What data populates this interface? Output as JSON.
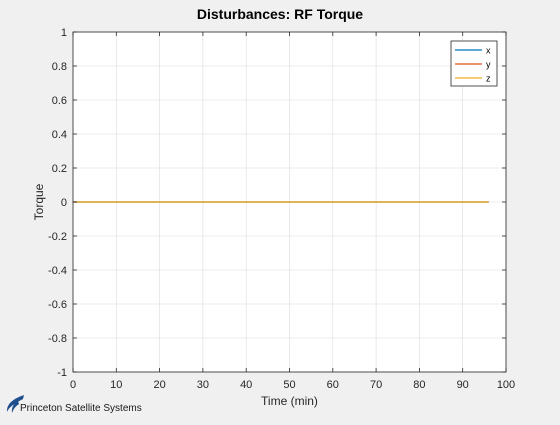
{
  "chart_data": {
    "type": "line",
    "title": "Disturbances: RF Torque",
    "xlabel": "Time (min)",
    "ylabel": "Torque",
    "xlim": [
      0,
      100
    ],
    "ylim": [
      -1,
      1
    ],
    "xticks": [
      0,
      10,
      20,
      30,
      40,
      50,
      60,
      70,
      80,
      90,
      100
    ],
    "xtick_labels": [
      "0",
      "10",
      "20",
      "30",
      "40",
      "50",
      "60",
      "70",
      "80",
      "90",
      "100"
    ],
    "yticks": [
      -1,
      -0.8,
      -0.6,
      -0.4,
      -0.2,
      0,
      0.2,
      0.4,
      0.6,
      0.8,
      1
    ],
    "ytick_labels": [
      "-1",
      "-0.8",
      "-0.6",
      "-0.4",
      "-0.2",
      "0",
      "0.2",
      "0.4",
      "0.6",
      "0.8",
      "1"
    ],
    "grid": true,
    "legend_position": "top-right",
    "series": [
      {
        "name": "x",
        "color": "#0072bd",
        "x": [
          0,
          96
        ],
        "y": [
          0,
          0
        ]
      },
      {
        "name": "y",
        "color": "#d95319",
        "x": [
          0,
          96
        ],
        "y": [
          0,
          0
        ]
      },
      {
        "name": "z",
        "color": "#edb120",
        "x": [
          0,
          96
        ],
        "y": [
          0,
          0
        ]
      }
    ]
  },
  "branding": {
    "text": "Princeton Satellite Systems",
    "logo_color": "#1f4e8c"
  }
}
